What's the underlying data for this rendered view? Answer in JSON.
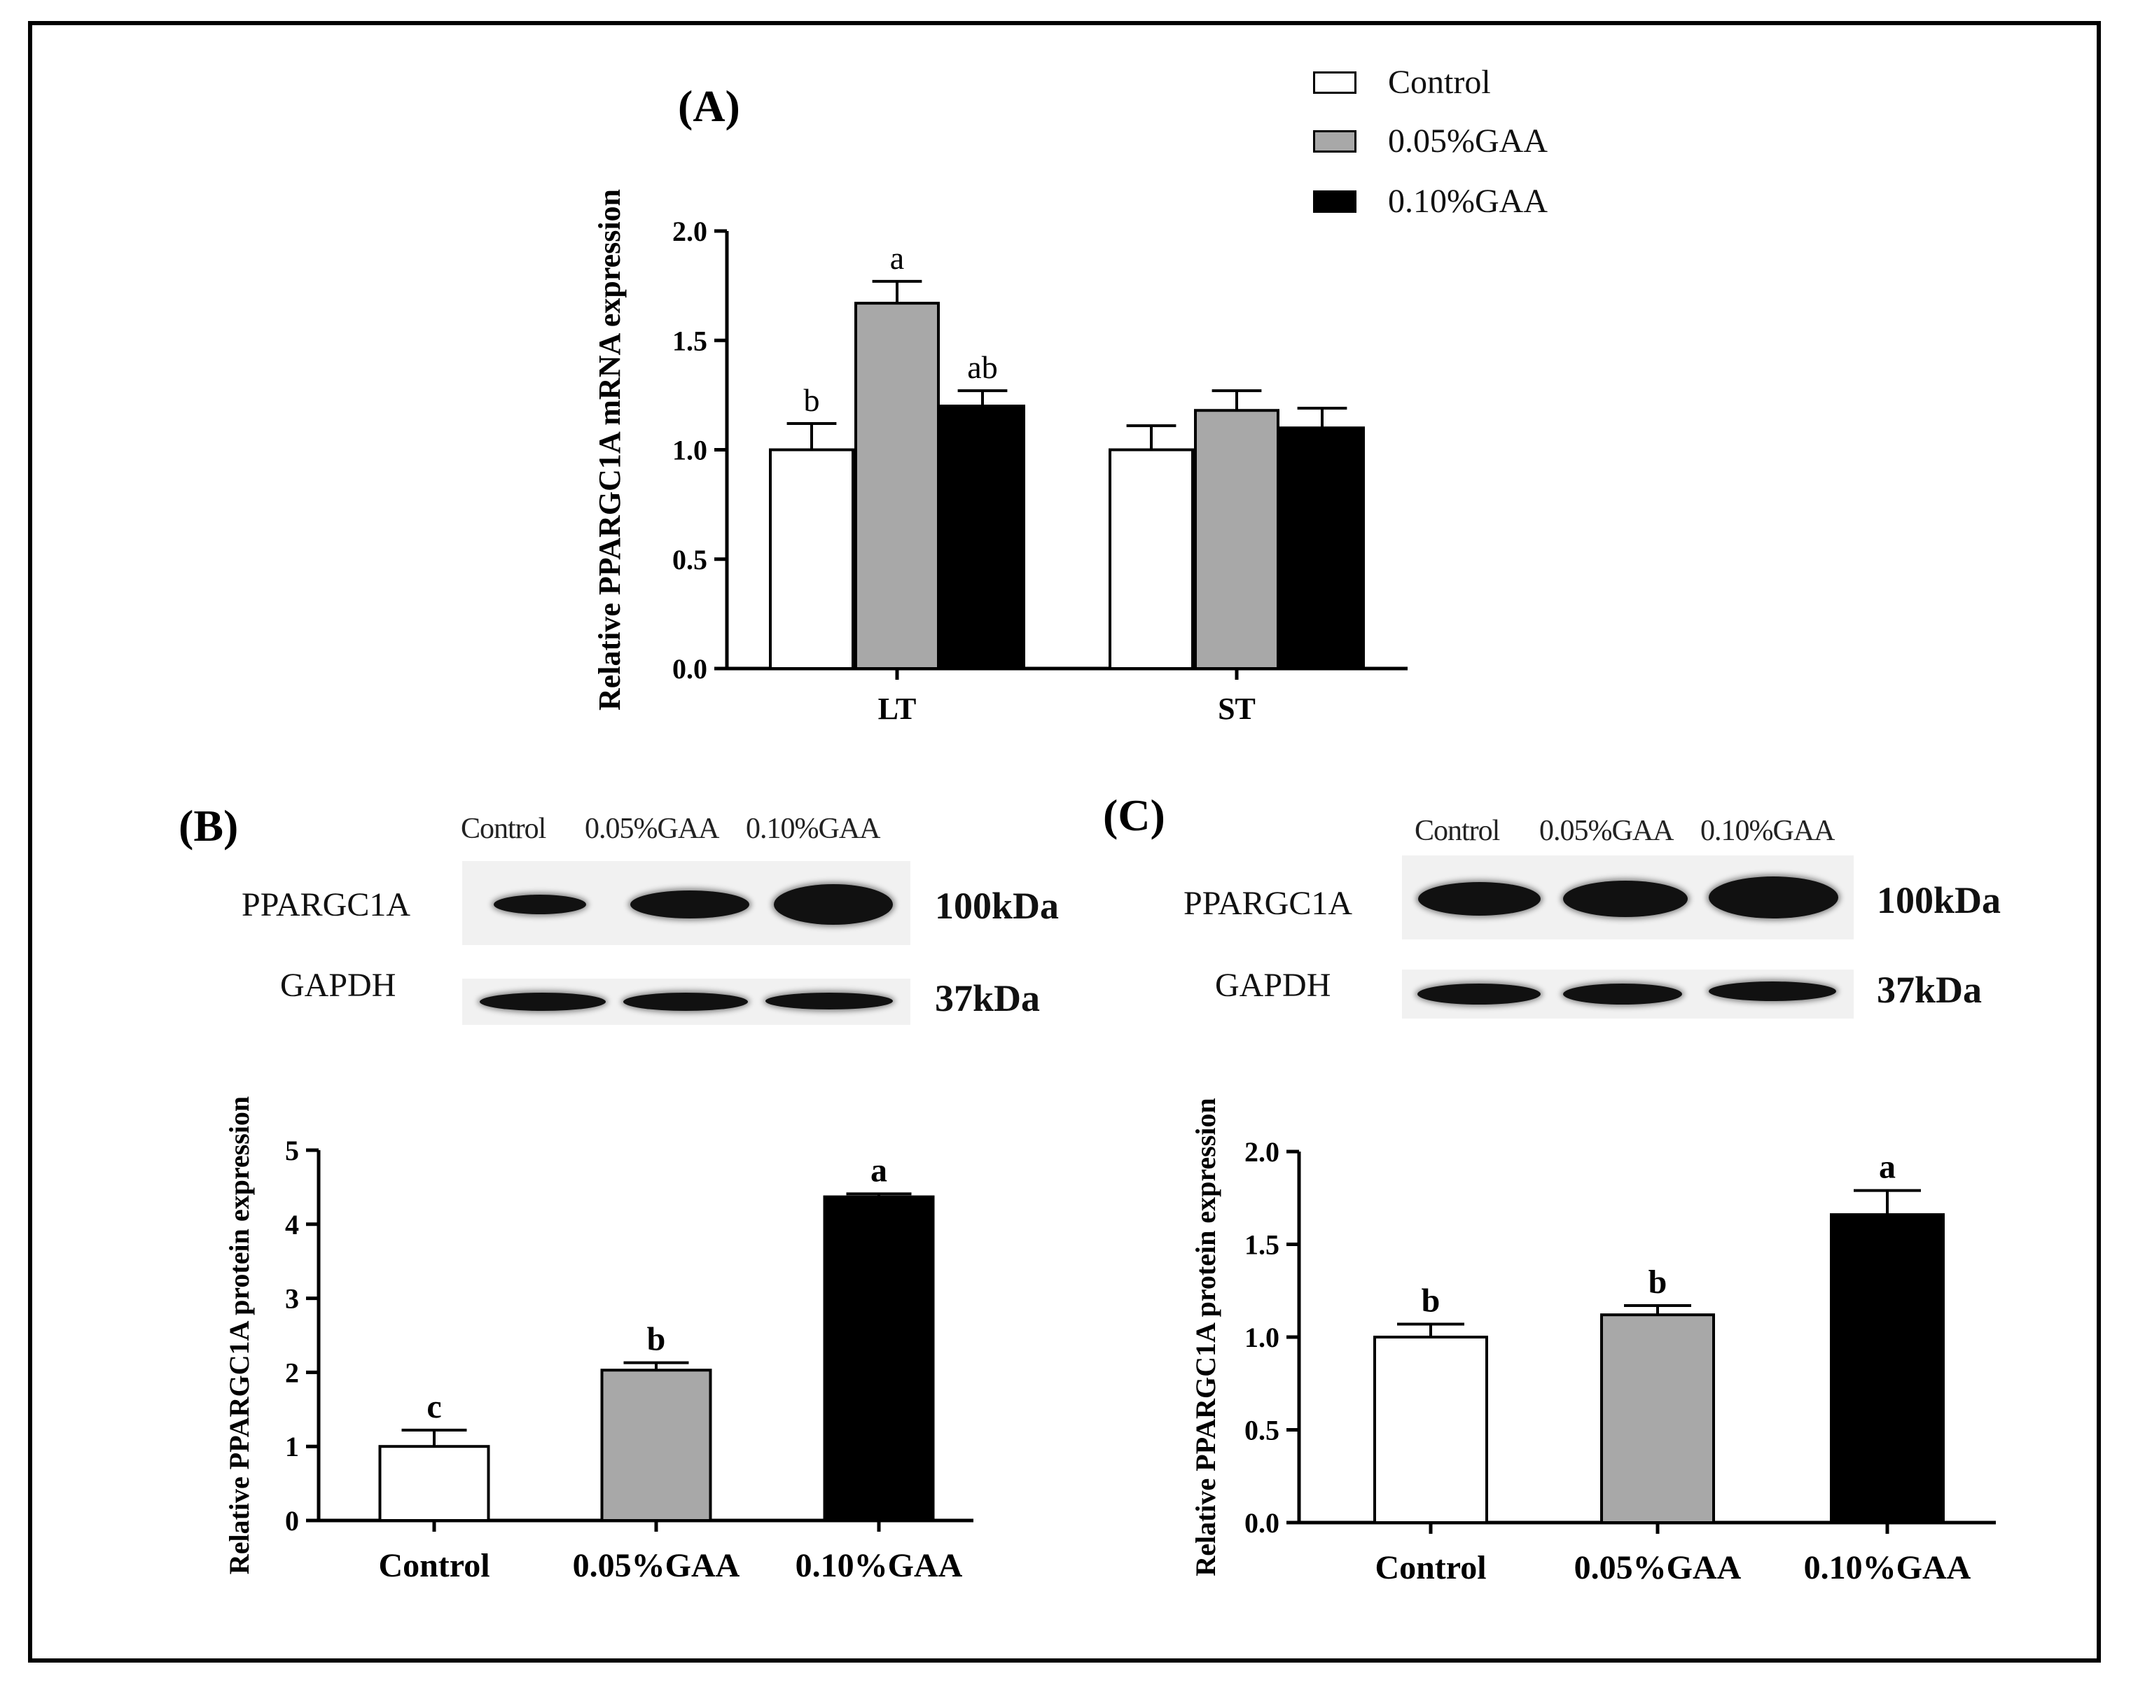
{
  "colors": {
    "control": "#ffffff",
    "gaa005": "#a8a8a8",
    "gaa010": "#000000",
    "axis": "#000000"
  },
  "legend": {
    "items": [
      {
        "label": "Control",
        "color": "#ffffff"
      },
      {
        "label": "0.05%GAA",
        "color": "#a8a8a8"
      },
      {
        "label": "0.10%GAA",
        "color": "#000000"
      }
    ]
  },
  "panelA": {
    "letter": "(A)"
  },
  "panelB": {
    "letter": "(B)"
  },
  "panelC": {
    "letter": "(C)"
  },
  "blotB": {
    "lanes": [
      "Control",
      "0.05%GAA",
      "0.10%GAA"
    ],
    "rows": [
      {
        "protein": "PPARGC1A",
        "kda": "100kDa"
      },
      {
        "protein": "GAPDH",
        "kda": "37kDa"
      }
    ]
  },
  "blotC": {
    "lanes": [
      "Control",
      "0.05%GAA",
      "0.10%GAA"
    ],
    "rows": [
      {
        "protein": "PPARGC1A",
        "kda": "100kDa"
      },
      {
        "protein": "GAPDH",
        "kda": "37kDa"
      }
    ]
  },
  "chart_data": [
    {
      "id": "A",
      "type": "bar",
      "title": "",
      "xlabel": "",
      "ylabel": "Relative PPARGC1A mRNA expression",
      "ylim": [
        0,
        2.0
      ],
      "yticks": [
        "0.0",
        "0.5",
        "1.0",
        "1.5",
        "2.0"
      ],
      "yticks_values": [
        0,
        0.5,
        1.0,
        1.5,
        2.0
      ],
      "categories": [
        "LT",
        "ST"
      ],
      "series": [
        {
          "name": "Control",
          "color": "#ffffff",
          "values": [
            1.0,
            1.0
          ],
          "errors": [
            0.12,
            0.11
          ],
          "labels": [
            "b",
            ""
          ]
        },
        {
          "name": "0.05%GAA",
          "color": "#a8a8a8",
          "values": [
            1.67,
            1.18
          ],
          "errors": [
            0.1,
            0.09
          ],
          "labels": [
            "a",
            ""
          ]
        },
        {
          "name": "0.10%GAA",
          "color": "#000000",
          "values": [
            1.2,
            1.1
          ],
          "errors": [
            0.07,
            0.09
          ],
          "labels": [
            "ab",
            ""
          ]
        }
      ]
    },
    {
      "id": "B",
      "type": "bar",
      "title": "",
      "xlabel": "",
      "ylabel": "Relative PPARGC1A protein expression",
      "ylim": [
        0,
        5
      ],
      "yticks": [
        "0",
        "1",
        "2",
        "3",
        "4",
        "5"
      ],
      "yticks_values": [
        0,
        1,
        2,
        3,
        4,
        5
      ],
      "categories": [
        "Control",
        "0.05%GAA",
        "0.10%GAA"
      ],
      "colors": [
        "#ffffff",
        "#a8a8a8",
        "#000000"
      ],
      "values": [
        1.0,
        2.03,
        4.37
      ],
      "errors": [
        0.22,
        0.1,
        0.04
      ],
      "labels": [
        "c",
        "b",
        "a"
      ]
    },
    {
      "id": "C",
      "type": "bar",
      "title": "",
      "xlabel": "",
      "ylabel": "Relative PPARGC1A protein expression",
      "ylim": [
        0,
        2.0
      ],
      "yticks": [
        "0.0",
        "0.5",
        "1.0",
        "1.5",
        "2.0"
      ],
      "yticks_values": [
        0,
        0.5,
        1.0,
        1.5,
        2.0
      ],
      "categories": [
        "Control",
        "0.05%GAA",
        "0.10%GAA"
      ],
      "colors": [
        "#ffffff",
        "#a8a8a8",
        "#000000"
      ],
      "values": [
        1.0,
        1.12,
        1.66
      ],
      "errors": [
        0.07,
        0.05,
        0.13
      ],
      "labels": [
        "b",
        "b",
        "a"
      ]
    }
  ]
}
